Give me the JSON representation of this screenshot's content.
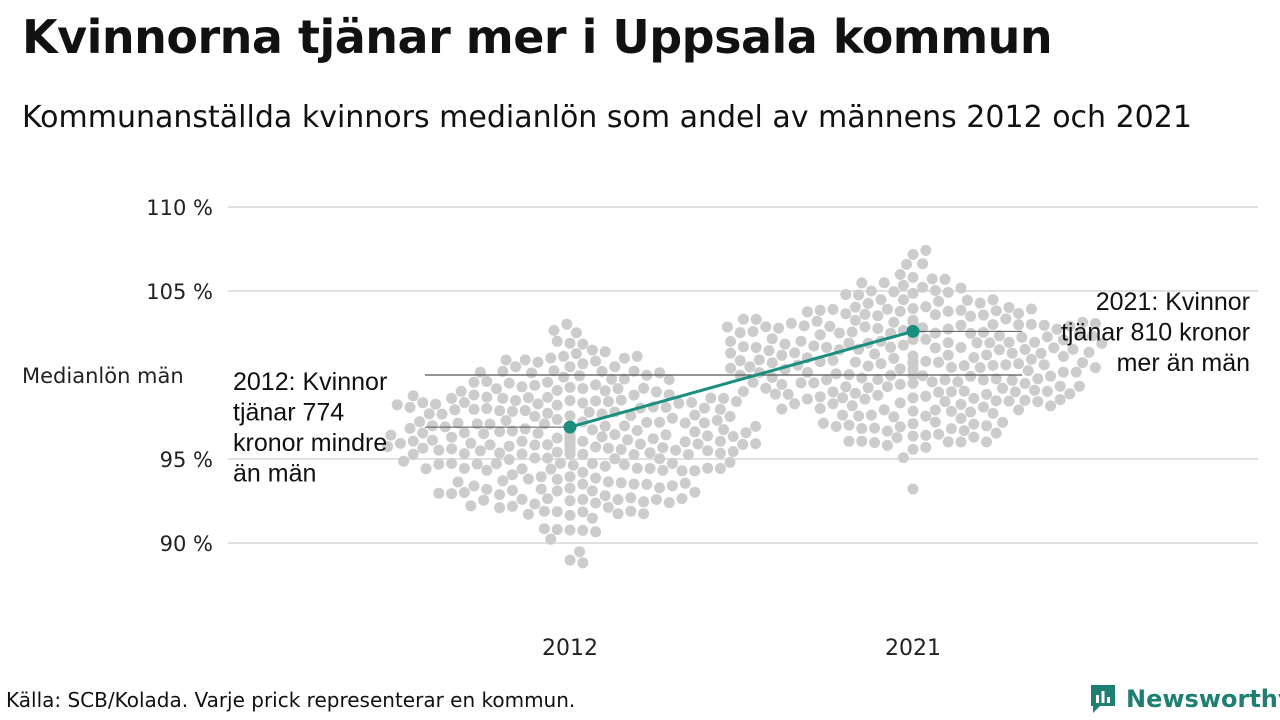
{
  "title": "Kvinnorna tjänar mer i Uppsala kommun",
  "subtitle": "Kommunanställda kvinnors medianlön som andel av männens 2012 och 2021",
  "source": "Källa: SCB/Kolada. Varje prick representerar en kommun.",
  "brand": "Newsworthy",
  "colors": {
    "dots": "#cccccc",
    "highlight": "#1a8f80",
    "grid": "#e0e0e0",
    "brand": "#1f7f73"
  },
  "chart_data": {
    "type": "scatter",
    "categories": [
      "2012",
      "2021"
    ],
    "y_ticks": [
      90,
      95,
      105,
      110
    ],
    "y_tick_labels": [
      "90 %",
      "95 %",
      "105 %",
      "110 %"
    ],
    "ylim": [
      86,
      112
    ],
    "reference_line": {
      "value": 100,
      "label": "Medianlön män"
    },
    "highlight": {
      "points": [
        {
          "x": "2012",
          "y": 96.9
        },
        {
          "x": "2021",
          "y": 102.6
        }
      ]
    },
    "annotations": [
      {
        "year": "2012",
        "lines": [
          "2012: Kvinnor",
          "tjänar 774",
          "kronor mindre",
          "än män"
        ]
      },
      {
        "year": "2021",
        "lines": [
          "2021: Kvinnor",
          "tjänar 810 kronor",
          "mer än män"
        ]
      }
    ]
  }
}
